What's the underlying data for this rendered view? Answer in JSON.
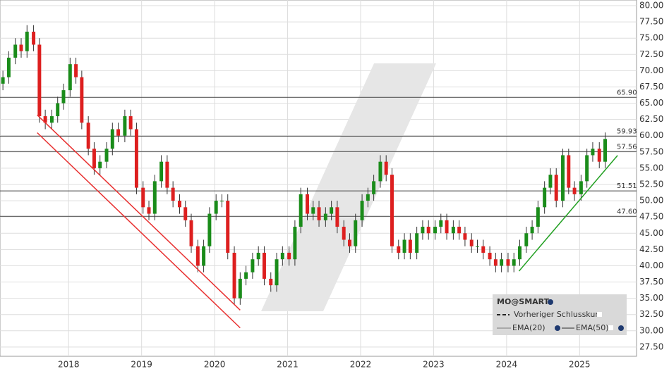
{
  "chart_data": {
    "type": "candlestick",
    "x": [
      2017.1,
      2017.18,
      2017.27,
      2017.35,
      2017.43,
      2017.52,
      2017.6,
      2017.68,
      2017.77,
      2017.85,
      2017.93,
      2018.02,
      2018.1,
      2018.18,
      2018.27,
      2018.35,
      2018.43,
      2018.52,
      2018.6,
      2018.68,
      2018.77,
      2018.85,
      2018.93,
      2019.02,
      2019.1,
      2019.18,
      2019.27,
      2019.35,
      2019.43,
      2019.52,
      2019.6,
      2019.68,
      2019.77,
      2019.85,
      2019.93,
      2020.02,
      2020.1,
      2020.18,
      2020.27,
      2020.35,
      2020.43,
      2020.52,
      2020.6,
      2020.68,
      2020.77,
      2020.85,
      2020.93,
      2021.02,
      2021.1,
      2021.18,
      2021.27,
      2021.35,
      2021.43,
      2021.52,
      2021.6,
      2021.68,
      2021.77,
      2021.85,
      2021.93,
      2022.02,
      2022.1,
      2022.18,
      2022.27,
      2022.35,
      2022.43,
      2022.52,
      2022.6,
      2022.68,
      2022.77,
      2022.85,
      2022.93,
      2023.02,
      2023.1,
      2023.18,
      2023.27,
      2023.35,
      2023.43,
      2023.52,
      2023.6,
      2023.68,
      2023.77,
      2023.85,
      2023.93,
      2024.02,
      2024.1,
      2024.18,
      2024.27,
      2024.35,
      2024.43,
      2024.52,
      2024.6,
      2024.68,
      2024.77,
      2024.85,
      2024.93,
      2025.02,
      2025.1,
      2025.18,
      2025.27,
      2025.35
    ],
    "open": [
      68,
      69,
      72,
      74,
      73,
      76,
      74,
      63,
      62,
      63,
      65,
      67,
      71,
      69,
      62,
      58,
      55,
      56,
      58,
      61,
      60,
      63,
      61,
      52,
      49,
      48,
      53,
      56,
      52,
      50,
      49,
      47,
      43,
      40,
      43,
      48,
      50,
      50,
      42,
      35,
      38,
      39,
      41,
      42,
      38,
      37,
      41,
      42,
      41,
      46,
      51,
      48,
      49,
      47,
      48,
      49,
      46,
      44,
      43,
      47,
      50,
      51,
      53,
      56,
      54,
      43,
      42,
      44,
      42,
      45,
      46,
      45,
      46,
      47,
      45,
      46,
      45,
      44,
      43,
      43,
      42,
      41,
      40,
      41,
      40,
      41,
      43,
      45,
      46,
      49,
      52,
      54,
      50,
      57,
      52,
      51,
      53,
      57,
      58,
      56
    ],
    "high": [
      70,
      73,
      75,
      75,
      77,
      77,
      75,
      64,
      64,
      66,
      68,
      72,
      72,
      70,
      63,
      59,
      57,
      59,
      62,
      62,
      64,
      64,
      62,
      53,
      50,
      54,
      57,
      57,
      53,
      51,
      50,
      48,
      44,
      44,
      49,
      51,
      51,
      51,
      43,
      39,
      40,
      42,
      43,
      43,
      39,
      42,
      43,
      43,
      47,
      52,
      52,
      50,
      50,
      49,
      50,
      50,
      47,
      45,
      48,
      51,
      52,
      54,
      57,
      57,
      55,
      44,
      45,
      45,
      46,
      47,
      47,
      47,
      48,
      48,
      47,
      47,
      46,
      45,
      44,
      44,
      43,
      42,
      42,
      42,
      42,
      44,
      46,
      47,
      50,
      53,
      55,
      55,
      58,
      58,
      53,
      54,
      58,
      59,
      59,
      60.5
    ],
    "low": [
      67,
      68,
      71,
      72,
      72,
      73,
      62,
      61,
      61,
      62,
      64,
      66,
      68,
      61,
      57,
      54,
      54,
      55,
      57,
      59,
      59,
      60,
      51,
      48,
      47,
      47,
      52,
      51,
      49,
      48,
      46,
      42,
      39,
      39,
      42,
      47,
      49,
      41,
      34,
      34,
      37,
      38,
      40,
      37,
      36,
      36,
      40,
      40,
      40,
      45,
      47,
      47,
      46,
      46,
      47,
      45,
      43,
      42,
      42,
      46,
      49,
      50,
      52,
      53,
      42,
      41,
      41,
      41,
      41,
      44,
      44,
      44,
      45,
      44,
      44,
      44,
      43,
      42,
      42,
      41,
      40,
      39,
      39,
      39,
      39,
      40,
      42,
      44,
      45,
      48,
      51,
      49,
      49,
      51,
      50,
      50,
      52,
      56,
      55,
      55
    ],
    "close": [
      69,
      72,
      74,
      73,
      76,
      74,
      63,
      62,
      63,
      65,
      67,
      71,
      69,
      62,
      58,
      55,
      56,
      58,
      61,
      60,
      63,
      61,
      52,
      49,
      48,
      53,
      56,
      52,
      50,
      49,
      47,
      43,
      40,
      43,
      48,
      50,
      50,
      42,
      35,
      38,
      39,
      41,
      42,
      38,
      37,
      41,
      42,
      41,
      46,
      51,
      48,
      49,
      47,
      48,
      49,
      46,
      44,
      43,
      47,
      50,
      51,
      53,
      56,
      54,
      43,
      42,
      44,
      42,
      45,
      46,
      45,
      46,
      47,
      45,
      46,
      45,
      44,
      43,
      43,
      42,
      41,
      40,
      41,
      40,
      41,
      43,
      45,
      46,
      49,
      52,
      54,
      50,
      57,
      52,
      51,
      53,
      57,
      58,
      56,
      59.5
    ],
    "colors": {
      "up": "#1a8c1a",
      "down": "#dd1f1f"
    },
    "xlim": [
      2017.06,
      2025.78
    ],
    "xticks": [
      2018,
      2019,
      2020,
      2021,
      2022,
      2023,
      2024,
      2025
    ],
    "ylim": [
      26.08,
      80.87
    ],
    "yticks": [
      {
        "value": 27.5,
        "label": "27.50"
      },
      {
        "value": 30,
        "label": "30.00"
      },
      {
        "value": 32.5,
        "label": "32.50"
      },
      {
        "value": 35,
        "label": "35.00"
      },
      {
        "value": 37.5,
        "label": "37.50"
      },
      {
        "value": 40,
        "label": "40.00"
      },
      {
        "value": 42.5,
        "label": "42.50"
      },
      {
        "value": 45,
        "label": "45.00"
      },
      {
        "value": 47.5,
        "label": "47.50"
      },
      {
        "value": 50,
        "label": "50.00"
      },
      {
        "value": 52.5,
        "label": "52.50"
      },
      {
        "value": 55,
        "label": "55.00"
      },
      {
        "value": 57.5,
        "label": "57.50"
      },
      {
        "value": 60,
        "label": "60.00"
      },
      {
        "value": 62.5,
        "label": "62.50"
      },
      {
        "value": 65,
        "label": "65.00"
      },
      {
        "value": 67.5,
        "label": "67.50"
      },
      {
        "value": 70,
        "label": "70.00"
      },
      {
        "value": 72.5,
        "label": "72.50"
      },
      {
        "value": 75,
        "label": "75.00"
      },
      {
        "value": 77.5,
        "label": "77.50"
      },
      {
        "value": 80,
        "label": "80.00"
      }
    ],
    "grid": true,
    "levels": [
      {
        "value": 65.9,
        "label": "65.90"
      },
      {
        "value": 59.93,
        "label": "59.93"
      },
      {
        "value": 57.56,
        "label": "57.56"
      },
      {
        "value": 51.51,
        "label": "51.51"
      },
      {
        "value": 47.6,
        "label": "47.60"
      }
    ],
    "trendlines": [
      {
        "color": "#e83030",
        "x": [
          2017.57,
          2020.35
        ],
        "y": [
          63.19,
          33.18
        ]
      },
      {
        "color": "#e83030",
        "x": [
          2017.57,
          2020.35
        ],
        "y": [
          60.46,
          30.45
        ]
      },
      {
        "color": "#22a022",
        "x": [
          2024.17,
          2025.52
        ],
        "y": [
          39.18,
          56.97
        ]
      }
    ],
    "legend": {
      "title": "MO@SMART",
      "prev_close": "Vorheriger Schlusskurs",
      "ema20": "EMA(20)",
      "ema50": "EMA(50)"
    }
  }
}
